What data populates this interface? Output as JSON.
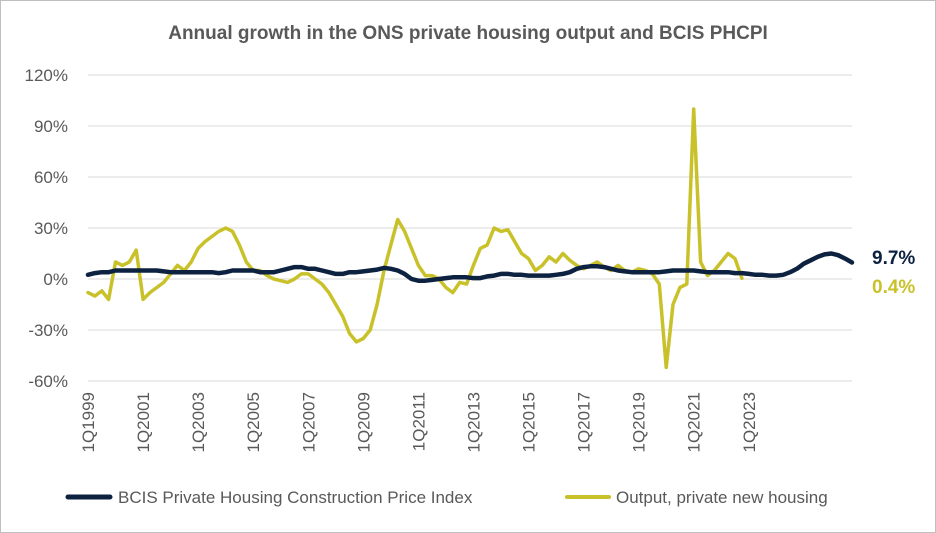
{
  "chart_data": {
    "type": "line",
    "title": "Annual growth in the ONS private housing output and BCIS PHCPI",
    "xlabel": "",
    "ylabel": "",
    "ylim": [
      -60,
      120
    ],
    "yticks": [
      "120%",
      "90%",
      "60%",
      "30%",
      "0%",
      "-30%",
      "-60%"
    ],
    "ytick_values": [
      120,
      90,
      60,
      30,
      0,
      -30,
      -60
    ],
    "xtick_labels": [
      "1Q1999",
      "1Q2001",
      "1Q2003",
      "1Q2005",
      "1Q2007",
      "1Q2009",
      "1Q2011",
      "1Q2013",
      "1Q2015",
      "1Q2017",
      "1Q2019",
      "1Q2021",
      "1Q2023"
    ],
    "grid": "horizontal",
    "legend_position": "bottom",
    "series": [
      {
        "name": "BCIS Private Housing Construction Price Index",
        "color": "#0d2240",
        "end_label": "9.7%",
        "values": [
          2.5,
          3.5,
          4,
          4,
          5,
          5,
          5,
          5,
          5,
          5,
          5,
          4.5,
          4,
          4,
          4,
          4,
          4,
          4,
          4,
          3.5,
          4,
          5,
          5,
          5,
          5,
          4,
          4,
          4,
          5,
          6,
          7,
          7,
          6,
          6,
          5,
          4,
          3,
          3,
          4,
          4,
          4.5,
          5,
          5.5,
          6.5,
          6,
          5,
          3,
          0,
          -1,
          -1,
          -0.5,
          0,
          0.5,
          1,
          1,
          1,
          0.5,
          0.5,
          1.5,
          2,
          3,
          3,
          2.5,
          2.5,
          2,
          2,
          2,
          2,
          2.5,
          3,
          4,
          6,
          7,
          7.5,
          7.5,
          7,
          6,
          5,
          4.5,
          4,
          4,
          4,
          4,
          4,
          4.5,
          5,
          5,
          5,
          5,
          4.5,
          4,
          4,
          4,
          4,
          3.5,
          3.5,
          3,
          2.5,
          2.5,
          2,
          2,
          2.5,
          4,
          6,
          9,
          11,
          13,
          14.5,
          15,
          14,
          12,
          9.7
        ]
      },
      {
        "name": "Output, private new housing",
        "color": "#c9c12a",
        "end_label": "0.4%",
        "values": [
          -8,
          -10,
          -7,
          -12,
          10,
          8,
          10,
          17,
          -12,
          -8,
          -5,
          -2,
          3,
          8,
          5,
          10,
          18,
          22,
          25,
          28,
          30,
          28,
          20,
          10,
          5,
          5,
          2,
          0,
          -1,
          -2,
          0,
          3,
          3,
          0,
          -3,
          -8,
          -15,
          -22,
          -32,
          -37,
          -35,
          -30,
          -15,
          5,
          20,
          35,
          28,
          18,
          8,
          2,
          2,
          0,
          -5,
          -8,
          -2,
          -3,
          8,
          18,
          20,
          30,
          28,
          29,
          22,
          15,
          12,
          5,
          8,
          13,
          10,
          15,
          11,
          8,
          6,
          8,
          10,
          7,
          5,
          8,
          5,
          4,
          6,
          5,
          3,
          -3,
          -52,
          -15,
          -5,
          -3,
          100,
          10,
          2,
          5,
          10,
          15,
          12,
          0.4
        ]
      }
    ]
  }
}
